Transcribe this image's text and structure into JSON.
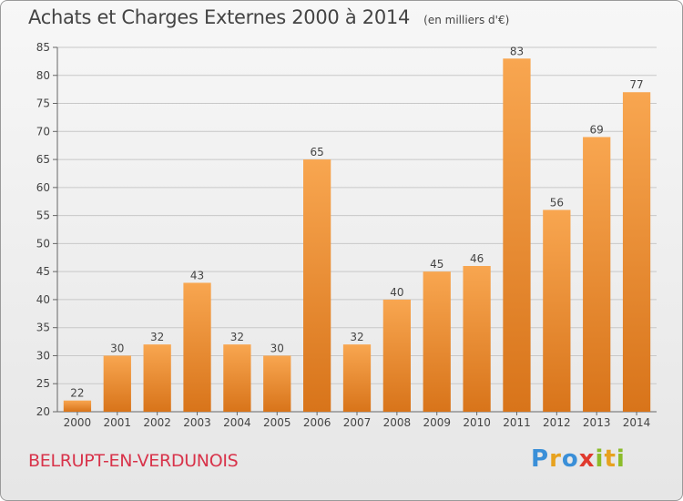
{
  "header": {
    "title": "Achats et Charges Externes 2000 à 2014",
    "unit": "(en milliers d'€)"
  },
  "footer": {
    "commune": "BELRUPT-EN-VERDUNOIS",
    "logo_letters": [
      {
        "ch": "P",
        "color": "#3a8fd8"
      },
      {
        "ch": "r",
        "color": "#e7a21f"
      },
      {
        "ch": "o",
        "color": "#3a8fd8"
      },
      {
        "ch": "x",
        "color": "#e03a2e"
      },
      {
        "ch": "i",
        "color": "#8cbc2a"
      },
      {
        "ch": "t",
        "color": "#e7a21f"
      },
      {
        "ch": "i",
        "color": "#8cbc2a"
      }
    ]
  },
  "colors": {
    "bar_light": "#f8a650",
    "bar_dark": "#d8741a",
    "grid": "#c8c8c8",
    "text": "#444444",
    "commune": "#d8334a"
  },
  "chart_data": {
    "type": "bar",
    "title": "Achats et Charges Externes 2000 à 2014",
    "xlabel": "",
    "ylabel": "",
    "categories": [
      "2000",
      "2001",
      "2002",
      "2003",
      "2004",
      "2005",
      "2006",
      "2007",
      "2008",
      "2009",
      "2010",
      "2011",
      "2012",
      "2013",
      "2014"
    ],
    "values": [
      22,
      30,
      32,
      43,
      32,
      30,
      65,
      32,
      40,
      45,
      46,
      83,
      56,
      69,
      77
    ],
    "ylim": [
      20,
      85
    ],
    "yticks": [
      20,
      25,
      30,
      35,
      40,
      45,
      50,
      55,
      60,
      65,
      70,
      75,
      80,
      85
    ],
    "grid": true,
    "data_labels": true
  }
}
